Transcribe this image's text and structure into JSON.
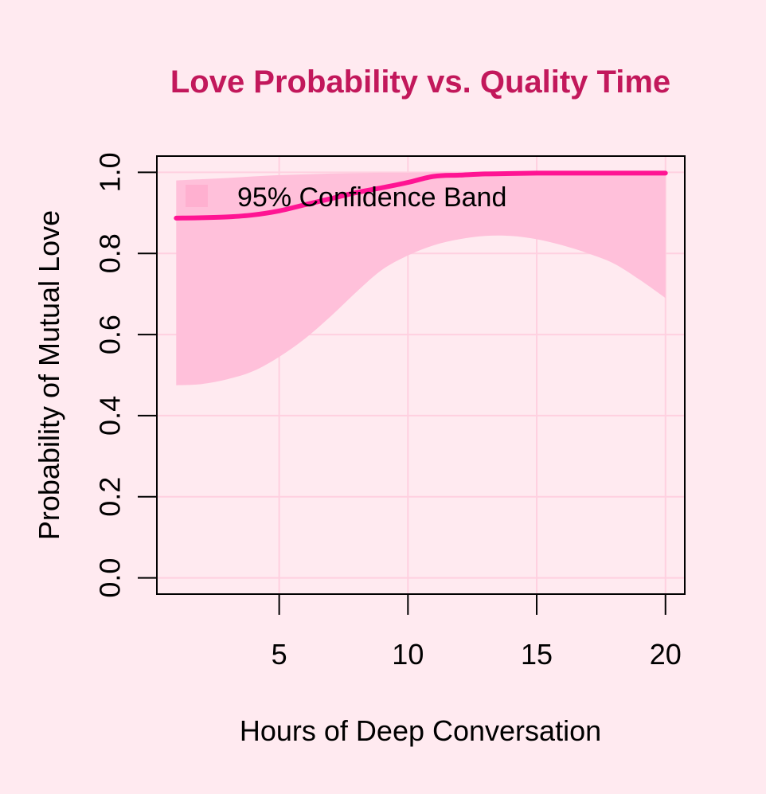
{
  "chart_data": {
    "type": "line",
    "title": "Love Probability vs. Quality Time",
    "xlabel": "Hours of Deep Conversation",
    "ylabel": "Probability of Mutual Love",
    "xlim": [
      0.25,
      20.75
    ],
    "ylim": [
      -0.04,
      1.04
    ],
    "x_ticks": [
      5,
      10,
      15,
      20
    ],
    "y_ticks": [
      0.0,
      0.2,
      0.4,
      0.6,
      0.8,
      1.0
    ],
    "x_tick_labels": [
      "5",
      "10",
      "15",
      "20"
    ],
    "y_tick_labels": [
      "0.0",
      "0.2",
      "0.4",
      "0.6",
      "0.8",
      "1.0"
    ],
    "grid": true,
    "legend": {
      "position": "top-left",
      "entries": [
        "95% Confidence Band"
      ]
    },
    "series": [
      {
        "kind": "line",
        "x": [
          1,
          2,
          3,
          4,
          5,
          6,
          7,
          8,
          9,
          10,
          11,
          12,
          13,
          14,
          15,
          16,
          17,
          18,
          19,
          20
        ],
        "values": [
          0.887,
          0.888,
          0.89,
          0.895,
          0.905,
          0.92,
          0.935,
          0.95,
          0.962,
          0.975,
          0.99,
          0.993,
          0.996,
          0.997,
          0.998,
          0.998,
          0.998,
          0.998,
          0.998,
          0.998
        ]
      },
      {
        "kind": "band",
        "name": "95% Confidence Band",
        "x": [
          1,
          2,
          3,
          4,
          5,
          6,
          7,
          8,
          9,
          10,
          11,
          12,
          13,
          14,
          15,
          16,
          17,
          18,
          19,
          20
        ],
        "lower": [
          0.475,
          0.478,
          0.49,
          0.51,
          0.545,
          0.59,
          0.645,
          0.705,
          0.76,
          0.795,
          0.82,
          0.835,
          0.843,
          0.843,
          0.835,
          0.82,
          0.8,
          0.775,
          0.735,
          0.69
        ],
        "upper": [
          0.98,
          0.983,
          0.986,
          0.99,
          0.993,
          0.995,
          0.997,
          0.998,
          0.999,
          0.999,
          1.0,
          1.0,
          1.0,
          1.0,
          1.0,
          1.0,
          1.0,
          1.0,
          1.0,
          1.0
        ]
      }
    ],
    "colors": {
      "background": "#FFEAF0",
      "title": "#C2185B",
      "line": "#FF1493",
      "band": "#FFC0DA",
      "legend_swatch": "#FFB0D0",
      "grid": "#FFD0E0",
      "axis": "#000000"
    }
  }
}
